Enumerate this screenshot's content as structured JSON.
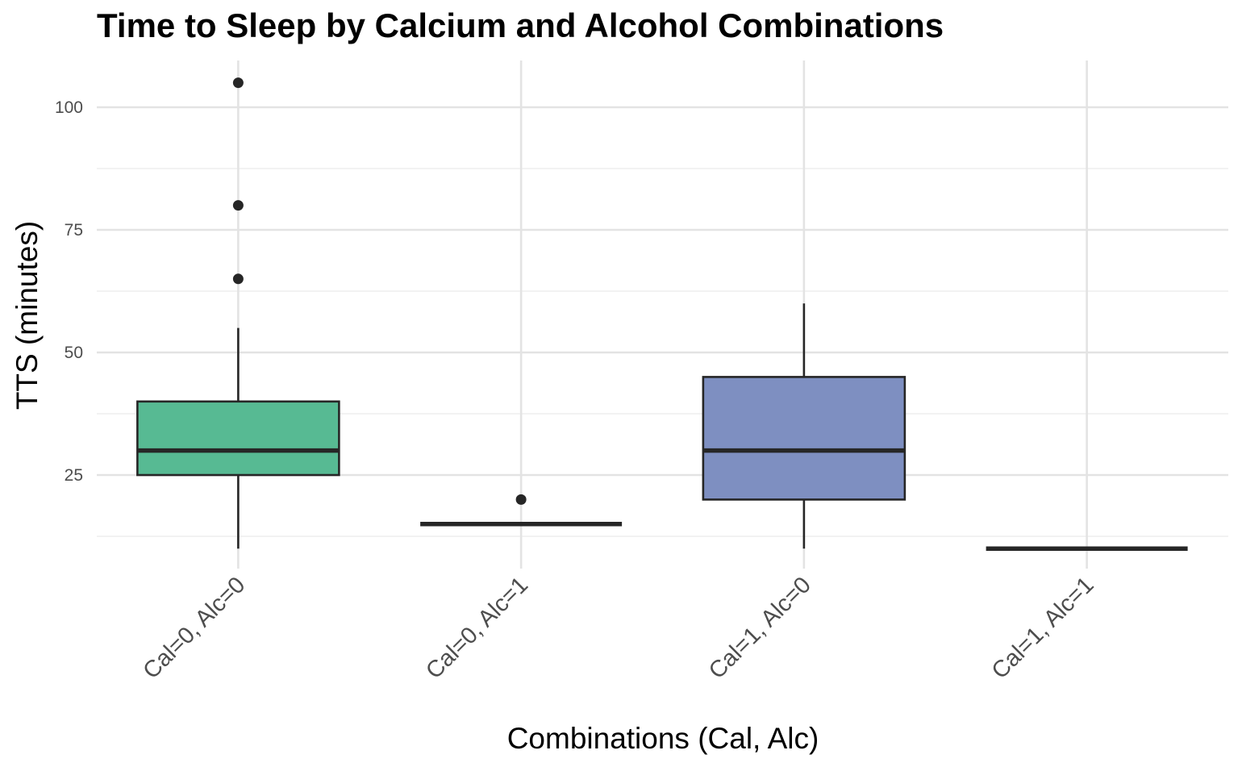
{
  "chart_data": {
    "type": "box",
    "title": "Time to Sleep by Calcium and Alcohol Combinations",
    "xlabel": "Combinations (Cal, Alc)",
    "ylabel": "TTS (minutes)",
    "categories": [
      "Cal=0, Alc=0",
      "Cal=0, Alc=1",
      "Cal=1, Alc=0",
      "Cal=1, Alc=1"
    ],
    "ylim": [
      5,
      110
    ],
    "yticks": [
      25,
      50,
      75,
      100
    ],
    "grid": true,
    "legend": "none",
    "boxes": [
      {
        "category": "Cal=0, Alc=0",
        "whisker_low": 10,
        "q1": 25,
        "median": 30,
        "q3": 40,
        "whisker_high": 55,
        "outliers": [
          65,
          80,
          105
        ],
        "color": "#57BA93"
      },
      {
        "category": "Cal=0, Alc=1",
        "whisker_low": 15,
        "q1": 15,
        "median": 15,
        "q3": 15,
        "whisker_high": 15,
        "outliers": [
          20
        ],
        "color": "#EF8B65"
      },
      {
        "category": "Cal=1, Alc=0",
        "whisker_low": 10,
        "q1": 20,
        "median": 30,
        "q3": 45,
        "whisker_high": 60,
        "outliers": [],
        "color": "#7E8FC1"
      },
      {
        "category": "Cal=1, Alc=1",
        "whisker_low": 10,
        "q1": 10,
        "median": 10,
        "q3": 10,
        "whisker_high": 10,
        "outliers": [],
        "color": "#DF86C0"
      }
    ]
  }
}
